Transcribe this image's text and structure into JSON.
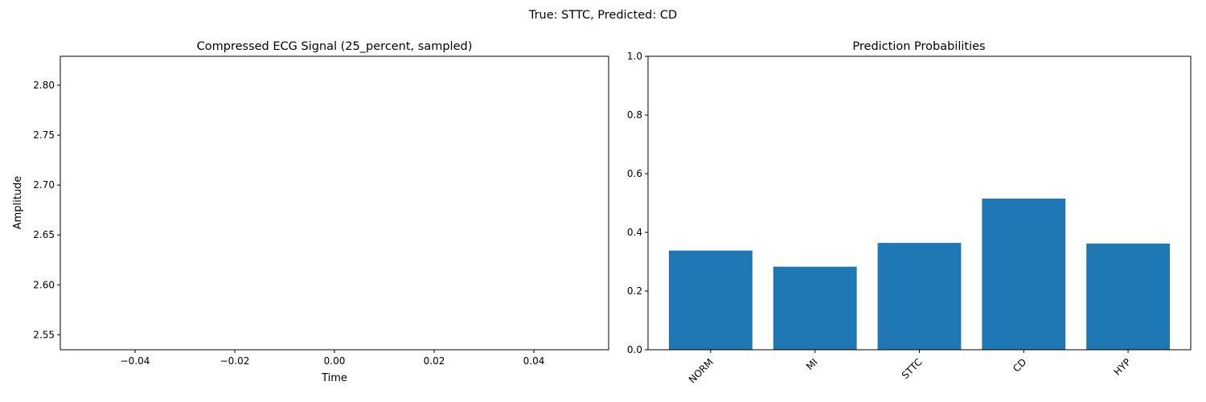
{
  "figure": {
    "suptitle": "True: STTC, Predicted: CD"
  },
  "chart_data": [
    {
      "type": "line",
      "title": "Compressed ECG Signal (25_percent, sampled)",
      "xlabel": "Time",
      "ylabel": "Amplitude",
      "xlim": [
        -0.055,
        0.055
      ],
      "ylim": [
        2.535,
        2.829
      ],
      "xticks": [
        -0.04,
        -0.02,
        0.0,
        0.02,
        0.04
      ],
      "xtick_labels": [
        "−0.04",
        "−0.02",
        "0.00",
        "0.02",
        "0.04"
      ],
      "yticks": [
        2.55,
        2.6,
        2.65,
        2.7,
        2.75,
        2.8
      ],
      "ytick_labels": [
        "2.55",
        "2.60",
        "2.65",
        "2.70",
        "2.75",
        "2.80"
      ],
      "series": [],
      "grid": false
    },
    {
      "type": "bar",
      "title": "Prediction Probabilities",
      "categories": [
        "NORM",
        "MI",
        "STTC",
        "CD",
        "HYP"
      ],
      "values": [
        0.338,
        0.283,
        0.364,
        0.515,
        0.362
      ],
      "ylim": [
        0,
        1.0
      ],
      "yticks": [
        0.0,
        0.2,
        0.4,
        0.6,
        0.8,
        1.0
      ],
      "ytick_labels": [
        "0.0",
        "0.2",
        "0.4",
        "0.6",
        "0.8",
        "1.0"
      ],
      "bar_color": "#1f77b4",
      "xtick_rotation": 45,
      "grid": false
    }
  ]
}
